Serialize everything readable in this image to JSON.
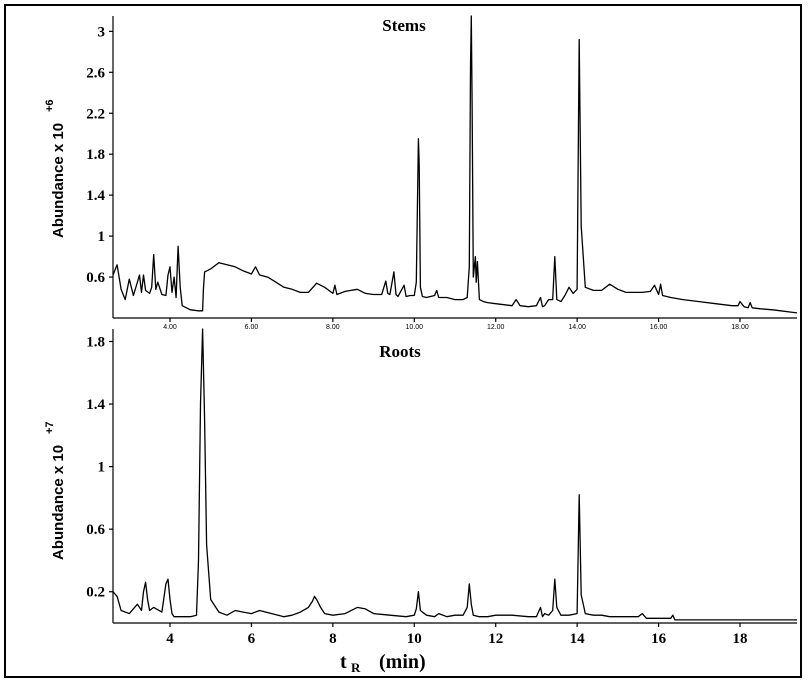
{
  "xaxis": {
    "label_main": "t",
    "label_sub": "R",
    "label_unit": "(min)"
  },
  "chart_data": [
    {
      "type": "line",
      "title": "Stems",
      "ylabel_main": "Abundance x 10",
      "ylabel_exp": "+6",
      "xlim": [
        2.6,
        19.4
      ],
      "ylim": [
        0.2,
        3.15
      ],
      "x_ticks": [
        "4.00",
        "6.00",
        "8.00",
        "10.00",
        "12.00",
        "14.00",
        "16.00",
        "18.00"
      ],
      "x_tick_values": [
        4,
        6,
        8,
        10,
        12,
        14,
        16,
        18
      ],
      "y_ticks": [
        "0.6",
        "1",
        "1.4",
        "1.8",
        "2.2",
        "2.6",
        "3"
      ],
      "y_tick_values": [
        0.6,
        1.0,
        1.4,
        1.8,
        2.2,
        2.6,
        3.0
      ],
      "series": [
        {
          "x": [
            2.6,
            2.7,
            2.8,
            2.9,
            3.0,
            3.1,
            3.2,
            3.25,
            3.3,
            3.35,
            3.4,
            3.5,
            3.55,
            3.6,
            3.65,
            3.7,
            3.8,
            3.9,
            3.95,
            4.0,
            4.05,
            4.1,
            4.15,
            4.2,
            4.25,
            4.3,
            4.5,
            4.7,
            4.8,
            4.82,
            4.85,
            5.0,
            5.2,
            5.4,
            5.6,
            5.8,
            6.0,
            6.1,
            6.2,
            6.4,
            6.6,
            6.8,
            7.0,
            7.2,
            7.4,
            7.6,
            7.8,
            8.0,
            8.05,
            8.1,
            8.3,
            8.6,
            8.8,
            9.0,
            9.2,
            9.3,
            9.35,
            9.4,
            9.5,
            9.55,
            9.6,
            9.75,
            9.8,
            9.9,
            10.0,
            10.05,
            10.1,
            10.12,
            10.15,
            10.2,
            10.3,
            10.5,
            10.55,
            10.6,
            10.8,
            11.0,
            11.2,
            11.3,
            11.35,
            11.38,
            11.4,
            11.42,
            11.45,
            11.5,
            11.52,
            11.55,
            11.6,
            11.7,
            11.8,
            12.0,
            12.2,
            12.4,
            12.5,
            12.6,
            12.8,
            13.0,
            13.1,
            13.15,
            13.2,
            13.3,
            13.4,
            13.45,
            13.5,
            13.6,
            13.7,
            13.8,
            13.9,
            14.0,
            14.05,
            14.1,
            14.2,
            14.4,
            14.6,
            14.8,
            15.0,
            15.2,
            15.4,
            15.6,
            15.8,
            15.9,
            16.0,
            16.05,
            16.1,
            16.3,
            16.6,
            17.0,
            17.4,
            17.8,
            17.95,
            18.0,
            18.1,
            18.2,
            18.25,
            18.3,
            18.5,
            18.8,
            19.0,
            19.2,
            19.4
          ],
          "y": [
            0.62,
            0.72,
            0.48,
            0.38,
            0.58,
            0.42,
            0.55,
            0.62,
            0.45,
            0.62,
            0.47,
            0.44,
            0.5,
            0.82,
            0.48,
            0.55,
            0.43,
            0.42,
            0.62,
            0.7,
            0.45,
            0.6,
            0.4,
            0.9,
            0.5,
            0.32,
            0.28,
            0.27,
            0.27,
            0.48,
            0.65,
            0.68,
            0.74,
            0.72,
            0.7,
            0.66,
            0.63,
            0.7,
            0.62,
            0.6,
            0.55,
            0.5,
            0.48,
            0.45,
            0.45,
            0.54,
            0.5,
            0.44,
            0.52,
            0.43,
            0.46,
            0.48,
            0.44,
            0.43,
            0.43,
            0.56,
            0.44,
            0.43,
            0.65,
            0.43,
            0.41,
            0.52,
            0.41,
            0.42,
            0.42,
            0.55,
            1.95,
            1.7,
            0.5,
            0.41,
            0.4,
            0.42,
            0.47,
            0.4,
            0.4,
            0.38,
            0.38,
            0.4,
            0.7,
            2.65,
            3.15,
            2.3,
            0.6,
            0.8,
            0.55,
            0.75,
            0.38,
            0.36,
            0.35,
            0.34,
            0.33,
            0.32,
            0.38,
            0.32,
            0.31,
            0.32,
            0.4,
            0.31,
            0.32,
            0.38,
            0.38,
            0.8,
            0.38,
            0.36,
            0.42,
            0.5,
            0.44,
            0.48,
            2.92,
            1.1,
            0.5,
            0.47,
            0.47,
            0.53,
            0.48,
            0.45,
            0.45,
            0.45,
            0.46,
            0.52,
            0.43,
            0.53,
            0.42,
            0.4,
            0.38,
            0.36,
            0.34,
            0.32,
            0.32,
            0.36,
            0.31,
            0.3,
            0.35,
            0.3,
            0.29,
            0.28,
            0.27,
            0.26,
            0.25
          ]
        }
      ]
    },
    {
      "type": "line",
      "title": "Roots",
      "ylabel_main": "Abundance x 10",
      "ylabel_exp": "+7",
      "xlim": [
        2.6,
        19.4
      ],
      "ylim": [
        0.0,
        1.88
      ],
      "x_ticks": [
        "4",
        "6",
        "8",
        "10",
        "12",
        "14",
        "16",
        "18"
      ],
      "x_tick_values": [
        4,
        6,
        8,
        10,
        12,
        14,
        16,
        18
      ],
      "y_ticks": [
        "0.2",
        "0.6",
        "1",
        "1.4",
        "1.8"
      ],
      "y_tick_values": [
        0.2,
        0.6,
        1.0,
        1.4,
        1.8
      ],
      "series": [
        {
          "x": [
            2.6,
            2.7,
            2.8,
            3.0,
            3.2,
            3.3,
            3.35,
            3.4,
            3.45,
            3.5,
            3.6,
            3.8,
            3.9,
            3.95,
            4.0,
            4.05,
            4.1,
            4.3,
            4.5,
            4.65,
            4.7,
            4.75,
            4.8,
            4.85,
            4.9,
            5.0,
            5.2,
            5.4,
            5.6,
            5.8,
            6.0,
            6.2,
            6.5,
            6.8,
            7.0,
            7.2,
            7.4,
            7.5,
            7.55,
            7.6,
            7.7,
            7.8,
            8.0,
            8.3,
            8.6,
            8.8,
            9.0,
            9.4,
            9.8,
            10.0,
            10.05,
            10.1,
            10.15,
            10.3,
            10.5,
            10.6,
            10.8,
            11.0,
            11.2,
            11.3,
            11.35,
            11.4,
            11.45,
            11.6,
            11.8,
            12.0,
            12.4,
            12.8,
            13.0,
            13.1,
            13.15,
            13.2,
            13.3,
            13.4,
            13.45,
            13.5,
            13.6,
            13.8,
            14.0,
            14.05,
            14.1,
            14.2,
            14.4,
            14.6,
            14.8,
            15.0,
            15.3,
            15.5,
            15.6,
            15.7,
            16.0,
            16.3,
            16.35,
            16.4,
            16.6,
            17.0,
            17.4,
            17.8,
            18.2,
            18.6,
            19.0,
            19.4
          ],
          "y": [
            0.2,
            0.17,
            0.08,
            0.06,
            0.12,
            0.08,
            0.2,
            0.26,
            0.15,
            0.08,
            0.1,
            0.07,
            0.25,
            0.28,
            0.15,
            0.06,
            0.04,
            0.04,
            0.04,
            0.05,
            0.4,
            1.4,
            1.88,
            1.3,
            0.5,
            0.15,
            0.07,
            0.05,
            0.08,
            0.07,
            0.06,
            0.08,
            0.06,
            0.04,
            0.05,
            0.07,
            0.1,
            0.14,
            0.17,
            0.15,
            0.1,
            0.06,
            0.05,
            0.06,
            0.1,
            0.09,
            0.06,
            0.05,
            0.04,
            0.05,
            0.09,
            0.2,
            0.08,
            0.05,
            0.04,
            0.06,
            0.04,
            0.05,
            0.05,
            0.1,
            0.25,
            0.12,
            0.05,
            0.04,
            0.04,
            0.05,
            0.05,
            0.04,
            0.04,
            0.1,
            0.04,
            0.06,
            0.05,
            0.08,
            0.28,
            0.1,
            0.05,
            0.05,
            0.06,
            0.82,
            0.18,
            0.06,
            0.05,
            0.05,
            0.04,
            0.04,
            0.04,
            0.04,
            0.06,
            0.03,
            0.03,
            0.03,
            0.05,
            0.02,
            0.02,
            0.02,
            0.02,
            0.02,
            0.02,
            0.02,
            0.02,
            0.02
          ]
        }
      ]
    }
  ]
}
